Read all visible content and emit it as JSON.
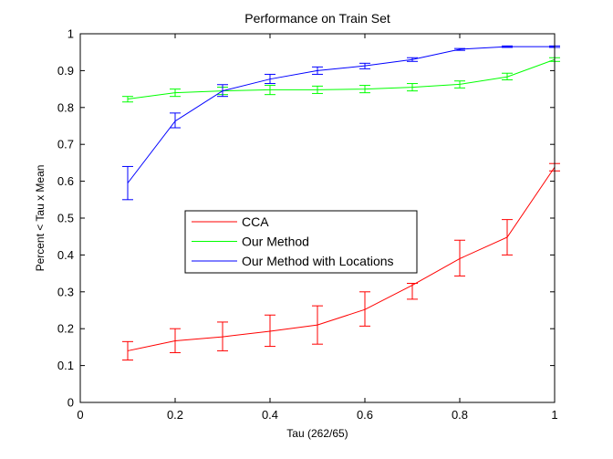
{
  "chart_data": {
    "type": "line",
    "title": "Performance on Train Set",
    "xlabel": "Tau (262/65)",
    "ylabel": "Percent < Tau x Mean",
    "xlim": [
      0,
      1
    ],
    "ylim": [
      0,
      1
    ],
    "xticks": [
      0,
      0.2,
      0.4,
      0.6,
      0.8,
      1
    ],
    "xtick_labels": [
      "0",
      "0.2",
      "0.4",
      "0.6",
      "0.8",
      "1"
    ],
    "yticks": [
      0,
      0.1,
      0.2,
      0.3,
      0.4,
      0.5,
      0.6,
      0.7,
      0.8,
      0.9,
      1
    ],
    "ytick_labels": [
      "0",
      "0.1",
      "0.2",
      "0.3",
      "0.4",
      "0.5",
      "0.6",
      "0.7",
      "0.8",
      "0.9",
      "1"
    ],
    "grid": false,
    "legend": "center-left",
    "x": [
      0.1,
      0.2,
      0.3,
      0.4,
      0.5,
      0.6,
      0.7,
      0.8,
      0.9,
      1.0
    ],
    "series": [
      {
        "name": "CCA",
        "color": "#ff0000",
        "values": [
          0.14,
          0.167,
          0.178,
          0.193,
          0.21,
          0.252,
          0.318,
          0.39,
          0.448,
          0.638
        ],
        "err_low": [
          0.115,
          0.135,
          0.14,
          0.152,
          0.158,
          0.207,
          0.28,
          0.343,
          0.4,
          0.628
        ],
        "err_high": [
          0.165,
          0.2,
          0.218,
          0.237,
          0.262,
          0.3,
          0.323,
          0.44,
          0.496,
          0.648
        ]
      },
      {
        "name": "Our Method",
        "color": "#00ff00",
        "values": [
          0.823,
          0.84,
          0.845,
          0.848,
          0.848,
          0.85,
          0.855,
          0.863,
          0.883,
          0.93
        ],
        "err_low": [
          0.815,
          0.83,
          0.835,
          0.835,
          0.838,
          0.84,
          0.845,
          0.853,
          0.875,
          0.925
        ],
        "err_high": [
          0.83,
          0.85,
          0.855,
          0.86,
          0.858,
          0.86,
          0.865,
          0.872,
          0.893,
          0.935
        ]
      },
      {
        "name": "Our Method with Locations",
        "color": "#0000ff",
        "values": [
          0.595,
          0.763,
          0.845,
          0.877,
          0.9,
          0.913,
          0.93,
          0.958,
          0.965,
          0.965
        ],
        "err_low": [
          0.55,
          0.745,
          0.83,
          0.865,
          0.89,
          0.905,
          0.925,
          0.955,
          0.963,
          0.963
        ],
        "err_high": [
          0.64,
          0.785,
          0.862,
          0.89,
          0.91,
          0.92,
          0.935,
          0.96,
          0.967,
          0.967
        ]
      }
    ]
  }
}
